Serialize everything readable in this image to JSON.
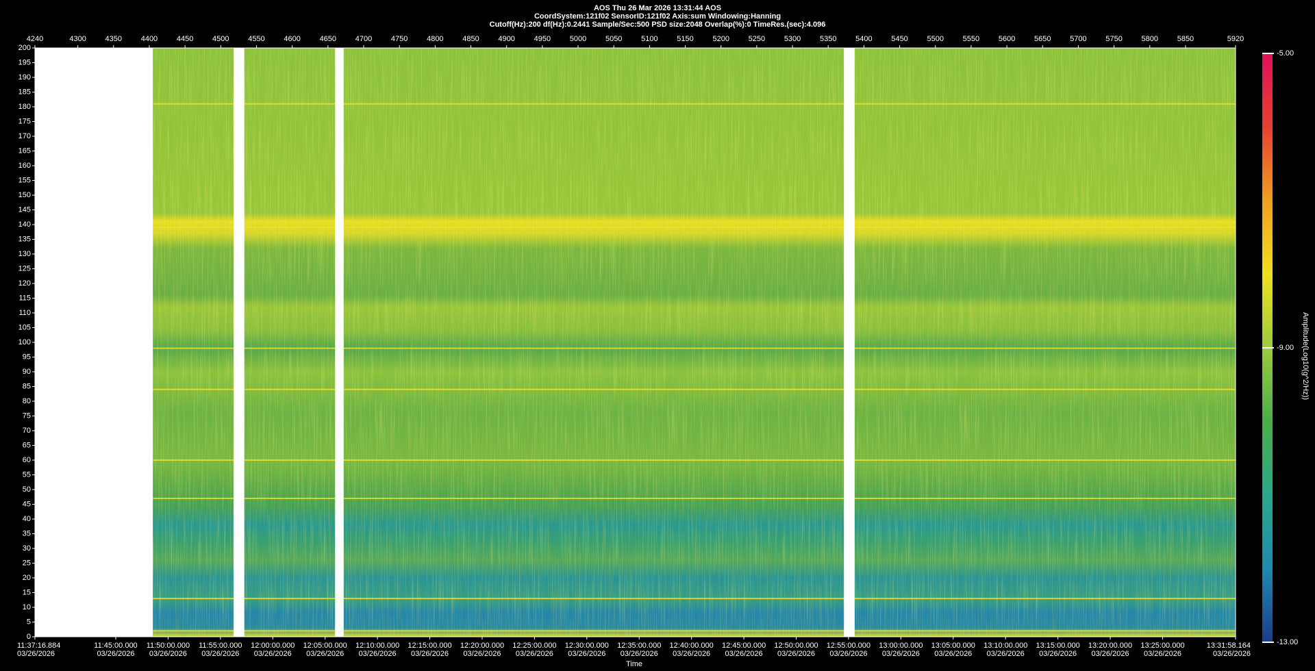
{
  "chart_data": {
    "type": "spectrogram",
    "header": [
      "AOS  Thu 26 Mar 2026 13:31:44  AOS",
      "CoordSystem:121f02   SensorID:121f02   Axis:sum    Windowing:Hanning",
      "Cutoff(Hz):200      df(Hz):0.2441      Sample/Sec:500      PSD size:2048      Overlap(%):0        TimeRes.(sec):4.096"
    ],
    "xlabel": "Time",
    "colorbar_label": "Amplitude(Log10(g^2/Hz))",
    "xlim": [
      4240,
      5920
    ],
    "xticks": [
      4240,
      4300,
      4350,
      4400,
      4450,
      4500,
      4550,
      4600,
      4650,
      4700,
      4750,
      4800,
      4850,
      4900,
      4950,
      5000,
      5050,
      5100,
      5150,
      5200,
      5250,
      5300,
      5350,
      5400,
      5450,
      5500,
      5550,
      5600,
      5650,
      5700,
      5750,
      5800,
      5850,
      5920
    ],
    "timeticks": [
      {
        "value": 4240,
        "label": "11:37:16.884"
      },
      {
        "value": 4353.07,
        "label": "11:45:00.000"
      },
      {
        "value": 4426.31,
        "label": "11:50:00.000"
      },
      {
        "value": 4499.55,
        "label": "11:55:00.000"
      },
      {
        "value": 4572.8,
        "label": "12:00:00.000"
      },
      {
        "value": 4646.04,
        "label": "12:05:00.000"
      },
      {
        "value": 4719.28,
        "label": "12:10:00.000"
      },
      {
        "value": 4792.52,
        "label": "12:15:00.000"
      },
      {
        "value": 4865.77,
        "label": "12:20:00.000"
      },
      {
        "value": 4939.01,
        "label": "12:25:00.000"
      },
      {
        "value": 5012.25,
        "label": "12:30:00.000"
      },
      {
        "value": 5085.49,
        "label": "12:35:00.000"
      },
      {
        "value": 5158.74,
        "label": "12:40:00.000"
      },
      {
        "value": 5231.98,
        "label": "12:45:00.000"
      },
      {
        "value": 5305.22,
        "label": "12:50:00.000"
      },
      {
        "value": 5378.46,
        "label": "12:55:00.000"
      },
      {
        "value": 5451.7,
        "label": "13:00:00.000"
      },
      {
        "value": 5524.95,
        "label": "13:05:00.000"
      },
      {
        "value": 5598.19,
        "label": "13:10:00.000"
      },
      {
        "value": 5671.43,
        "label": "13:15:00.000"
      },
      {
        "value": 5744.67,
        "label": "13:20:00.000"
      },
      {
        "value": 5817.92,
        "label": "13:25:00.000"
      },
      {
        "value": 5920,
        "label": "13:31:58.164"
      }
    ],
    "timetick_dates": [
      "03/26/2026",
      "03/26/2026",
      "03/26/2026",
      "03/26/2026",
      "03/26/2026",
      "03/26/2026",
      "03/26/2026",
      "03/26/2026",
      "03/26/2026",
      "03/26/2026",
      "03/26/2026",
      "03/26/2026",
      "03/26/2026",
      "03/26/2026",
      "03/26/2026",
      "03/26/2026",
      "03/26/2026",
      "03/26/2026",
      "03/26/2026",
      "03/26/2026",
      "03/26/2026",
      "03/26/2026",
      "03/26/2026"
    ],
    "ylim": [
      0,
      200
    ],
    "yticks": [
      0,
      5,
      10,
      15,
      20,
      25,
      30,
      35,
      40,
      45,
      50,
      55,
      60,
      65,
      70,
      75,
      80,
      85,
      90,
      95,
      100,
      105,
      110,
      115,
      120,
      125,
      130,
      135,
      140,
      145,
      150,
      155,
      160,
      165,
      170,
      175,
      180,
      185,
      190,
      195,
      200
    ],
    "segments": [
      [
        4405,
        4518
      ],
      [
        4533,
        4660
      ],
      [
        4672,
        5372
      ],
      [
        5387,
        5920
      ]
    ],
    "tonal_lines_hz": [
      181,
      141,
      139,
      98,
      84,
      60,
      47,
      13,
      2
    ],
    "clim": [
      -13,
      -5
    ],
    "cticks": [
      {
        "value": -13,
        "label": "-13.00"
      },
      {
        "value": -9,
        "label": "-9.00"
      },
      {
        "value": -5,
        "label": "-5.00"
      }
    ],
    "colorscale": [
      "#1a3c8c",
      "#1f8ab0",
      "#2aa88a",
      "#4aae4a",
      "#9ccb3a",
      "#f0e020",
      "#f0a020",
      "#e84030",
      "#e0105a"
    ]
  }
}
